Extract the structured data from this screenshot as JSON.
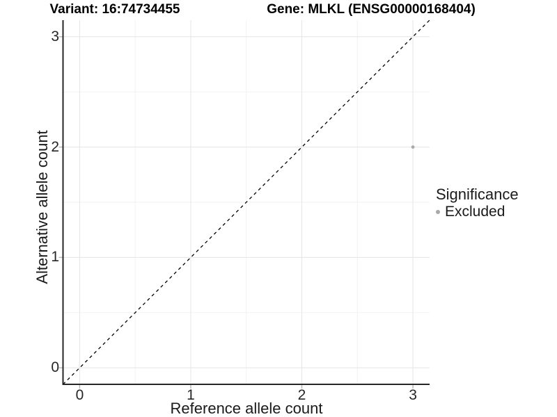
{
  "page": {
    "background": "#ffffff"
  },
  "header": {
    "variant_title": "Variant: 16:74734455",
    "gene_title": "Gene: MLKL (ENSG00000168404)"
  },
  "axes": {
    "x_title": "Reference allele count",
    "y_title": "Alternative allele count"
  },
  "legend": {
    "title": "Significance",
    "items": [
      {
        "label": "Excluded",
        "color": "#a9a9a9"
      }
    ]
  },
  "chart_data": {
    "type": "scatter",
    "title_left": "Variant: 16:74734455",
    "title_right": "Gene: MLKL (ENSG00000168404)",
    "xlabel": "Reference allele count",
    "ylabel": "Alternative allele count",
    "xlim": [
      -0.15,
      3.15
    ],
    "ylim": [
      -0.15,
      3.15
    ],
    "x_major_ticks": [
      0,
      1,
      2,
      3
    ],
    "y_major_ticks": [
      0,
      1,
      2,
      3
    ],
    "x_minor_ticks": [
      0.5,
      1.5,
      2.5
    ],
    "y_minor_ticks": [
      0.5,
      1.5,
      2.5
    ],
    "grid": true,
    "legend_position": "right",
    "series": [
      {
        "name": "Excluded",
        "color": "#a9a9a9",
        "points": [
          {
            "x": 3,
            "y": 2
          }
        ]
      }
    ],
    "reference_line": {
      "type": "identity y=x",
      "style": "dashed",
      "color": "#000000",
      "from": [
        -0.15,
        -0.15
      ],
      "to": [
        3.15,
        3.15
      ]
    }
  },
  "style": {
    "grid_major": "#e7e7e7",
    "grid_minor": "#f2f2f2",
    "axis_line": "#262626",
    "tick_mark": "#b3b3b3",
    "point": "#a9a9a9"
  }
}
